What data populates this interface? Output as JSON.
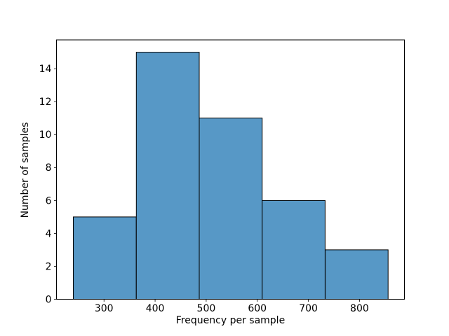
{
  "chart_data": {
    "type": "bar",
    "subtype": "histogram",
    "title": "",
    "xlabel": "Frequency per sample",
    "ylabel": "Number of samples",
    "bin_edges": [
      240,
      363.2,
      486.4,
      609.6,
      732.8,
      856
    ],
    "counts": [
      5,
      15,
      11,
      6,
      3
    ],
    "x_ticks": [
      300,
      400,
      500,
      600,
      700,
      800
    ],
    "y_ticks": [
      0,
      2,
      4,
      6,
      8,
      10,
      12,
      14
    ],
    "xlim": [
      207,
      888
    ],
    "ylim": [
      0,
      15.75
    ],
    "grid": false,
    "legend": "none",
    "colors": {
      "background": "#ffffff",
      "bar_fill": "#5798C6",
      "bar_edge": "#000000",
      "axes": "#000000",
      "text": "#000000"
    }
  }
}
